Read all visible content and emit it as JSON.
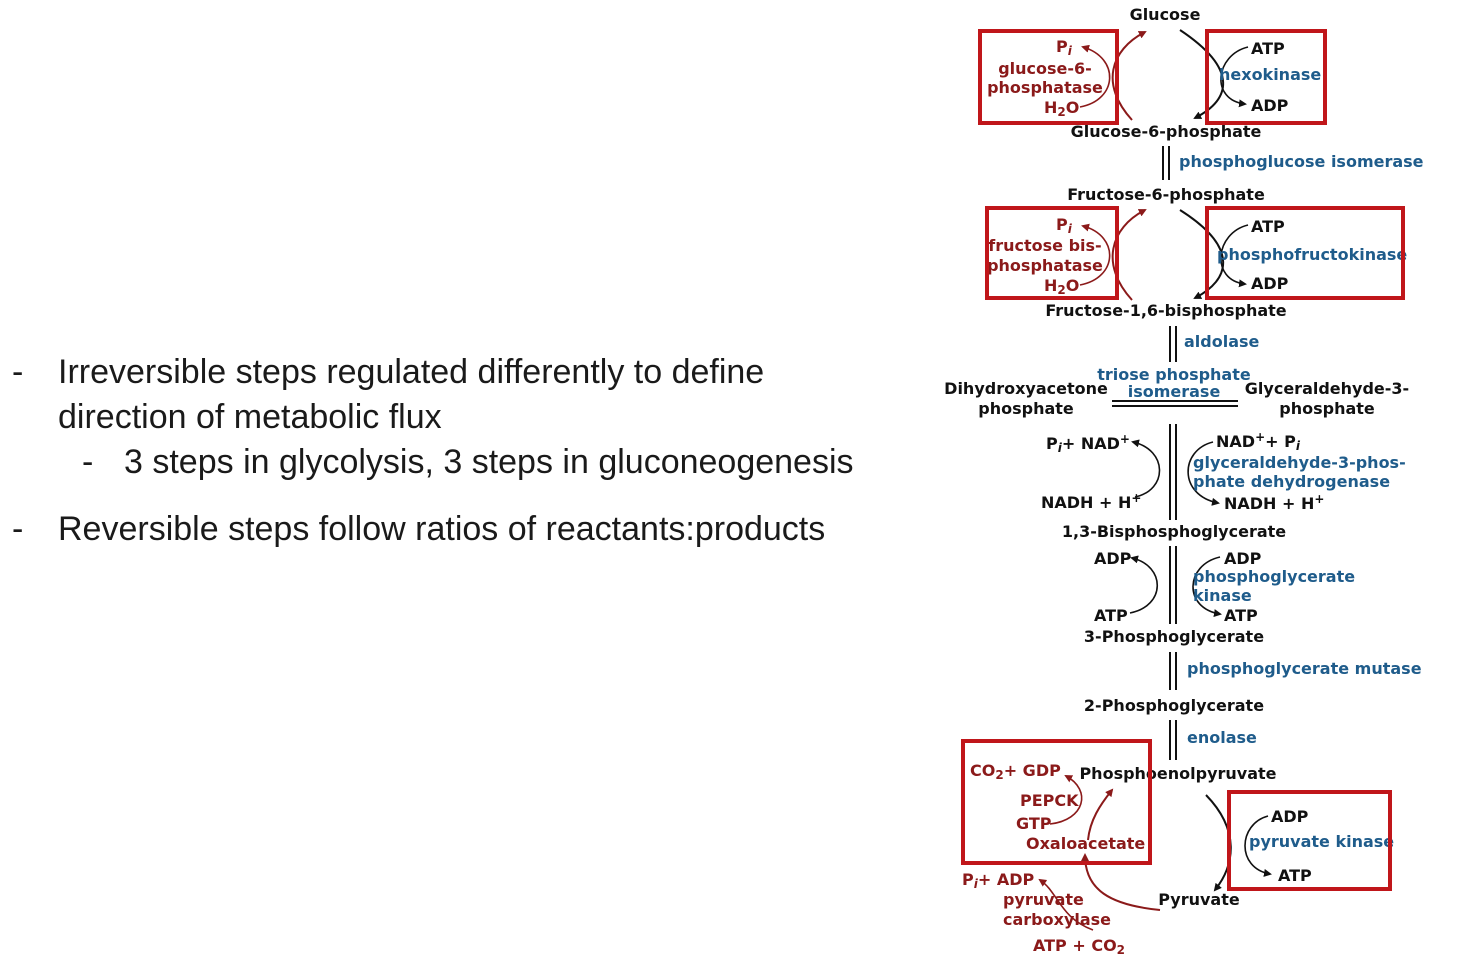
{
  "bullets": [
    {
      "dash": "-",
      "line1": "Irreversible steps regulated differently to define",
      "line2": "direction of metabolic flux"
    },
    {
      "dash": "-",
      "line1": "3 steps in glycolysis, 3 steps in gluconeogenesis"
    },
    {
      "dash": "-",
      "line1": "Reversible steps follow ratios of reactants:products"
    }
  ],
  "colors": {
    "highlight_box": "#c0161a",
    "enzyme_blue": "#1f5c8b",
    "gluconeogenesis_red": "#8b1a1a",
    "text": "#111111"
  },
  "pathway": {
    "glucose": "Glucose",
    "g6p": "Glucose-6-phosphate",
    "f6p": "Fructose-6-phosphate",
    "f16bp": "Fructose-1,6-bisphosphate",
    "dhap_1": "Dihydroxyacetone",
    "dhap_2": "phosphate",
    "gap_1": "Glyceraldehyde-3-",
    "gap_2": "phosphate",
    "bpg13": "1,3-Bisphosphoglycerate",
    "pg3": "3-Phosphoglycerate",
    "pg2": "2-Phosphoglycerate",
    "pep": "Phosphoenolpyruvate",
    "pyruvate": "Pyruvate",
    "oxaloacetate": "Oxaloacetate"
  },
  "enzymes": {
    "hexokinase": "hexokinase",
    "pgi": "phosphoglucose isomerase",
    "pfk": "phosphofructokinase",
    "aldolase": "aldolase",
    "tpi_1": "triose phosphate",
    "tpi_2": "isomerase",
    "gapdh_1": "glyceraldehyde-3-phos-",
    "gapdh_2": "phate dehydrogenase",
    "pgk_1": "phosphoglycerate",
    "pgk_2": "kinase",
    "pgm": "phosphoglycerate mutase",
    "enolase": "enolase",
    "pk": "pyruvate kinase"
  },
  "gluconeogenic_enzymes": {
    "g6pase_1": "glucose-6-",
    "g6pase_2": "phosphatase",
    "fbpase_1": "fructose bis-",
    "fbpase_2": "phosphatase",
    "pepck": "PEPCK",
    "pc_1": "pyruvate",
    "pc_2": "carboxylase"
  },
  "cofactors": {
    "atp": "ATP",
    "adp": "ADP",
    "pi": "P",
    "pi_sub": "i",
    "h2o": "H",
    "h2o_sub": "2",
    "h2o_o": "O",
    "nad_left": "P",
    "nad_left_rest": "+ NAD",
    "nad_right": "NAD",
    "nad_right_rest": "+ P",
    "nadh": "NADH + H",
    "plus": "+",
    "co2_gdp": "CO",
    "co2_gdp_rest": "+ GDP",
    "gtp": "GTP",
    "pi_adp_rest": "+ ADP",
    "atp_co2": "ATP + CO",
    "sub2": "2"
  }
}
